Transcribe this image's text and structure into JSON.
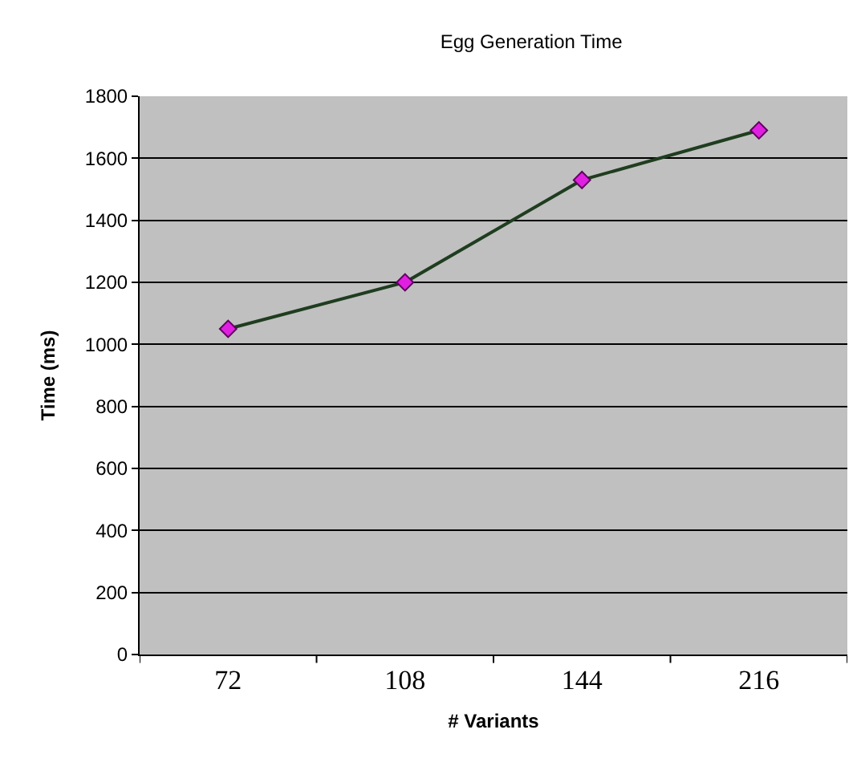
{
  "chart_data": {
    "type": "line",
    "title": "Egg Generation Time",
    "xlabel": "# Variants",
    "ylabel": "Time (ms)",
    "categories": [
      "72",
      "108",
      "144",
      "216"
    ],
    "series": [
      {
        "color": "#1f3d1f",
        "values": [
          1050,
          1200,
          1530,
          1690
        ]
      }
    ],
    "ylim": [
      0,
      1800
    ],
    "yticks": [
      0,
      200,
      400,
      600,
      800,
      1000,
      1200,
      1400,
      1600,
      1800
    ],
    "grid": "y",
    "legend": false,
    "marker": "diamond",
    "line_style": "solid"
  }
}
